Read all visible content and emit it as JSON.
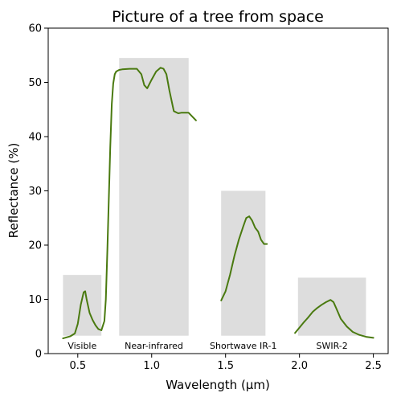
{
  "chart_data": {
    "type": "line",
    "title": "Picture of a tree from space",
    "xlabel": "Wavelength (μm)",
    "ylabel": "Reflectance (%)",
    "xlim": [
      0.3,
      2.6
    ],
    "ylim": [
      0,
      60
    ],
    "xticks": [
      0.5,
      1.0,
      1.5,
      2.0,
      2.5
    ],
    "xtick_labels": [
      "0.5",
      "1.0",
      "1.5",
      "2.0",
      "2.5"
    ],
    "yticks": [
      0,
      10,
      20,
      30,
      40,
      50,
      60
    ],
    "ytick_labels": [
      "0",
      "10",
      "20",
      "30",
      "40",
      "50",
      "60"
    ],
    "grid": false,
    "line_color": "#4a7a10",
    "bands": [
      {
        "label": "Visible",
        "x_start": 0.4,
        "x_end": 0.66,
        "y_top": 14.5,
        "fill": "rainbow"
      },
      {
        "label": "Near-infrared",
        "x_start": 0.78,
        "x_end": 1.25,
        "y_top": 54.5,
        "fill": "#dddddd"
      },
      {
        "label": "Shortwave IR-1",
        "x_start": 1.47,
        "x_end": 1.77,
        "y_top": 30.0,
        "fill": "#dddddd"
      },
      {
        "label": "SWIR-2",
        "x_start": 1.99,
        "x_end": 2.45,
        "y_top": 14.0,
        "fill": "#dddddd"
      }
    ],
    "series": [
      {
        "x": [
          0.4,
          0.45,
          0.48,
          0.5,
          0.52,
          0.54,
          0.55,
          0.56,
          0.58,
          0.6,
          0.62,
          0.64,
          0.66,
          0.68,
          0.69,
          0.7,
          0.72,
          0.73,
          0.74,
          0.75,
          0.76,
          0.78,
          0.8,
          0.85,
          0.9,
          0.93,
          0.95,
          0.97,
          1.0,
          1.03,
          1.06,
          1.08,
          1.1,
          1.12,
          1.15,
          1.18,
          1.2,
          1.25,
          1.3
        ],
        "y": [
          2.8,
          3.2,
          3.7,
          5.5,
          9.0,
          11.3,
          11.5,
          10.0,
          7.5,
          6.2,
          5.2,
          4.5,
          4.3,
          6.0,
          10.0,
          19.0,
          38.0,
          46.0,
          49.8,
          51.5,
          52.0,
          52.3,
          52.4,
          52.5,
          52.5,
          51.5,
          49.5,
          48.9,
          50.5,
          52.0,
          52.7,
          52.5,
          51.5,
          48.5,
          44.7,
          44.3,
          44.4,
          44.4,
          43.0
        ]
      },
      {
        "x": [
          1.47,
          1.5,
          1.53,
          1.56,
          1.59,
          1.62,
          1.64,
          1.66,
          1.68,
          1.7,
          1.72,
          1.74,
          1.76,
          1.78
        ],
        "y": [
          9.8,
          11.5,
          14.5,
          18.0,
          21.0,
          23.5,
          25.0,
          25.3,
          24.5,
          23.2,
          22.5,
          21.0,
          20.2,
          20.2
        ]
      },
      {
        "x": [
          1.97,
          2.0,
          2.03,
          2.06,
          2.09,
          2.12,
          2.15,
          2.18,
          2.21,
          2.23,
          2.25,
          2.28,
          2.32,
          2.36,
          2.4,
          2.45,
          2.5
        ],
        "y": [
          3.8,
          4.8,
          5.8,
          6.7,
          7.7,
          8.4,
          9.0,
          9.5,
          9.9,
          9.5,
          8.3,
          6.4,
          5.0,
          4.0,
          3.5,
          3.1,
          2.9
        ]
      }
    ]
  }
}
